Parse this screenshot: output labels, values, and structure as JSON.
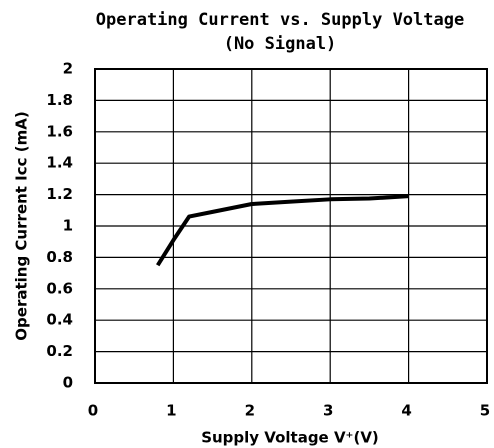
{
  "chart_data": {
    "type": "line",
    "title": [
      "Operating Current vs. Supply Voltage",
      "(No Signal)"
    ],
    "xlabel": "Supply Voltage V⁺(V)",
    "ylabel": "Operating Current Icc (mA)",
    "x": [
      0.8,
      1.0,
      1.2,
      1.5,
      2.0,
      2.5,
      3.0,
      3.5,
      4.0
    ],
    "series": [
      {
        "name": "Icc",
        "color": "#000000",
        "values": [
          0.75,
          0.91,
          1.06,
          1.09,
          1.14,
          1.155,
          1.17,
          1.175,
          1.19
        ]
      }
    ],
    "xlim": [
      0,
      5
    ],
    "xticks": [
      0,
      1,
      2,
      3,
      4,
      5
    ],
    "ylim": [
      0,
      2
    ],
    "yticks": [
      0,
      0.2,
      0.4,
      0.6,
      0.8,
      1,
      1.2,
      1.4,
      1.6,
      1.8,
      2
    ],
    "grid": true
  }
}
